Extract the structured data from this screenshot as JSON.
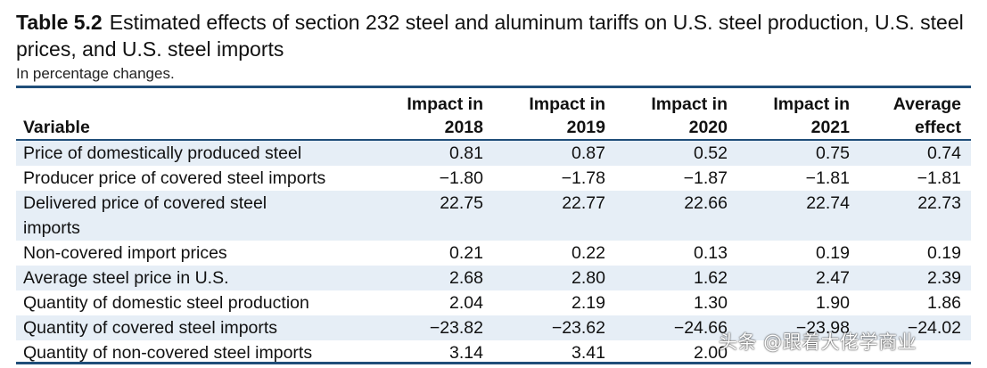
{
  "table": {
    "number": "Table 5.2",
    "title": "Estimated effects of section 232 steel and aluminum tariffs on U.S. steel production, U.S. steel prices, and U.S. steel imports",
    "subtitle": "In percentage changes.",
    "headers": {
      "variable": "Variable",
      "cols": [
        {
          "line1": "Impact in",
          "line2": "2018"
        },
        {
          "line1": "Impact in",
          "line2": "2019"
        },
        {
          "line1": "Impact in",
          "line2": "2020"
        },
        {
          "line1": "Impact in",
          "line2": "2021"
        },
        {
          "line1": "Average",
          "line2": "effect"
        }
      ]
    },
    "rows": [
      {
        "label": "Price of domestically produced steel",
        "values": [
          "0.81",
          "0.87",
          "0.52",
          "0.75",
          "0.74"
        ]
      },
      {
        "label": "Producer price of covered steel imports",
        "values": [
          "−1.80",
          "−1.78",
          "−1.87",
          "−1.81",
          "−1.81"
        ]
      },
      {
        "label": "Delivered price of covered steel imports",
        "values": [
          "22.75",
          "22.77",
          "22.66",
          "22.74",
          "22.73"
        ]
      },
      {
        "label": "Non-covered import prices",
        "values": [
          "0.21",
          "0.22",
          "0.13",
          "0.19",
          "0.19"
        ]
      },
      {
        "label": "Average steel price in U.S.",
        "values": [
          "2.68",
          "2.80",
          "1.62",
          "2.47",
          "2.39"
        ]
      },
      {
        "label": "Quantity of domestic steel production",
        "values": [
          "2.04",
          "2.19",
          "1.30",
          "1.90",
          "1.86"
        ]
      },
      {
        "label": "Quantity of covered steel imports",
        "values": [
          "−23.82",
          "−23.62",
          "−24.66",
          "−23.98",
          "−24.02"
        ]
      },
      {
        "label": "Quantity of non-covered steel imports",
        "values": [
          "3.14",
          "3.41",
          "2.00",
          "",
          ""
        ]
      }
    ]
  },
  "watermark": "头条 @跟着大佬学商业",
  "colors": {
    "rule": "#1f4e79",
    "row_shade": "#e6eef6"
  }
}
